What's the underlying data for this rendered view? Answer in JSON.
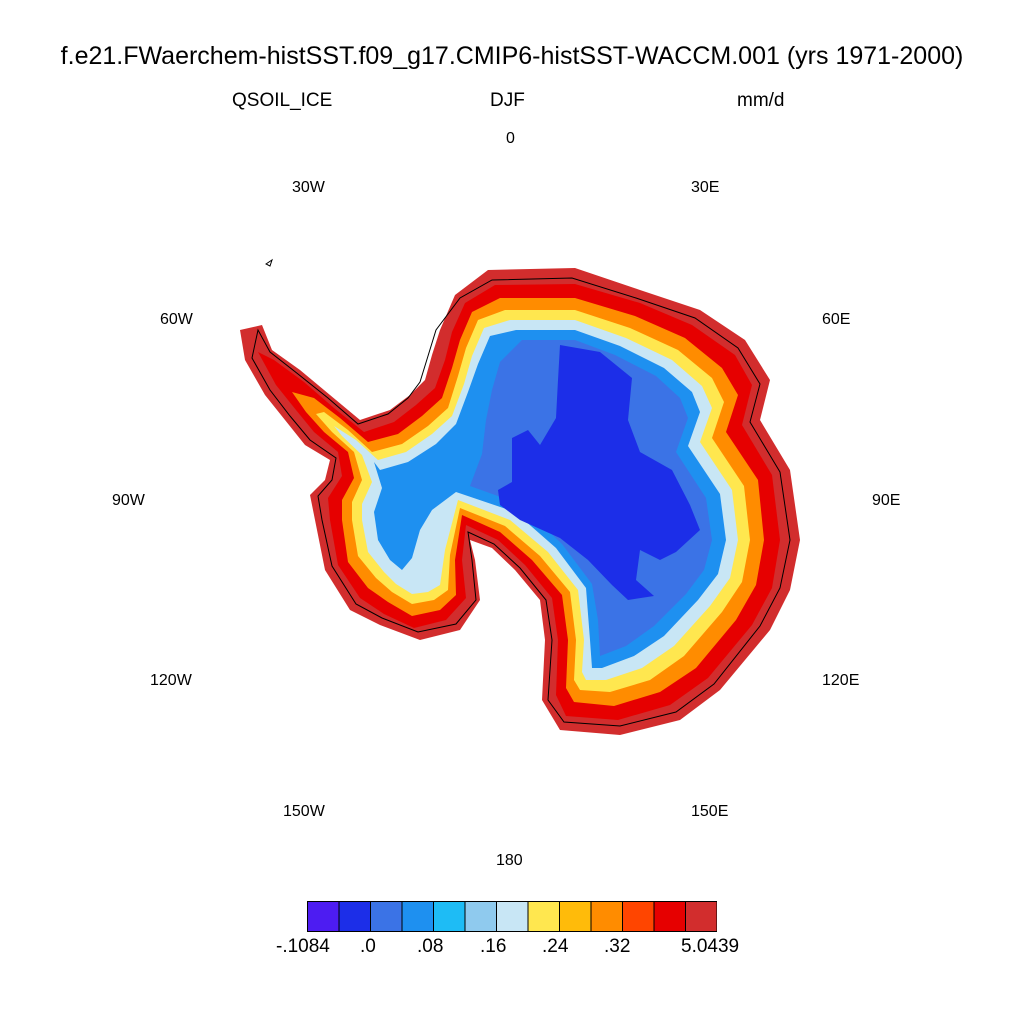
{
  "title": "f.e21.FWaerchem-histSST.f09_g17.CMIP6-histSST-WACCM.001 (yrs 1971-2000)",
  "subtitle": {
    "left": "QSOIL_ICE",
    "center": "DJF",
    "right": "mm/d"
  },
  "lon_labels": {
    "l0": "0",
    "l30e": "30E",
    "l60e": "60E",
    "l90e": "90E",
    "l120e": "120E",
    "l150e": "150E",
    "l180": "180",
    "l150w": "150W",
    "l120w": "120W",
    "l90w": "90W",
    "l60w": "60W",
    "l30w": "30W"
  },
  "colorbar": {
    "colors": [
      "#4d1cf2",
      "#1c2ee8",
      "#3b73e6",
      "#1e90f0",
      "#1ebcf5",
      "#8fcaee",
      "#c8e6f5",
      "#ffe74f",
      "#ffbb0a",
      "#ff8c00",
      "#ff4500",
      "#e60000",
      "#d22d2d"
    ],
    "labels": {
      "a": "-.1084",
      "b": ".0",
      "c": ".08",
      "d": ".16",
      "e": ".24",
      "f": ".32",
      "g": "5.0439"
    }
  },
  "map": {
    "region": "Antarctica",
    "projection": "south polar stereographic",
    "field": "QSOIL_ICE",
    "pattern": "interior values near 0 (blue), coastal margins highest (red)"
  }
}
